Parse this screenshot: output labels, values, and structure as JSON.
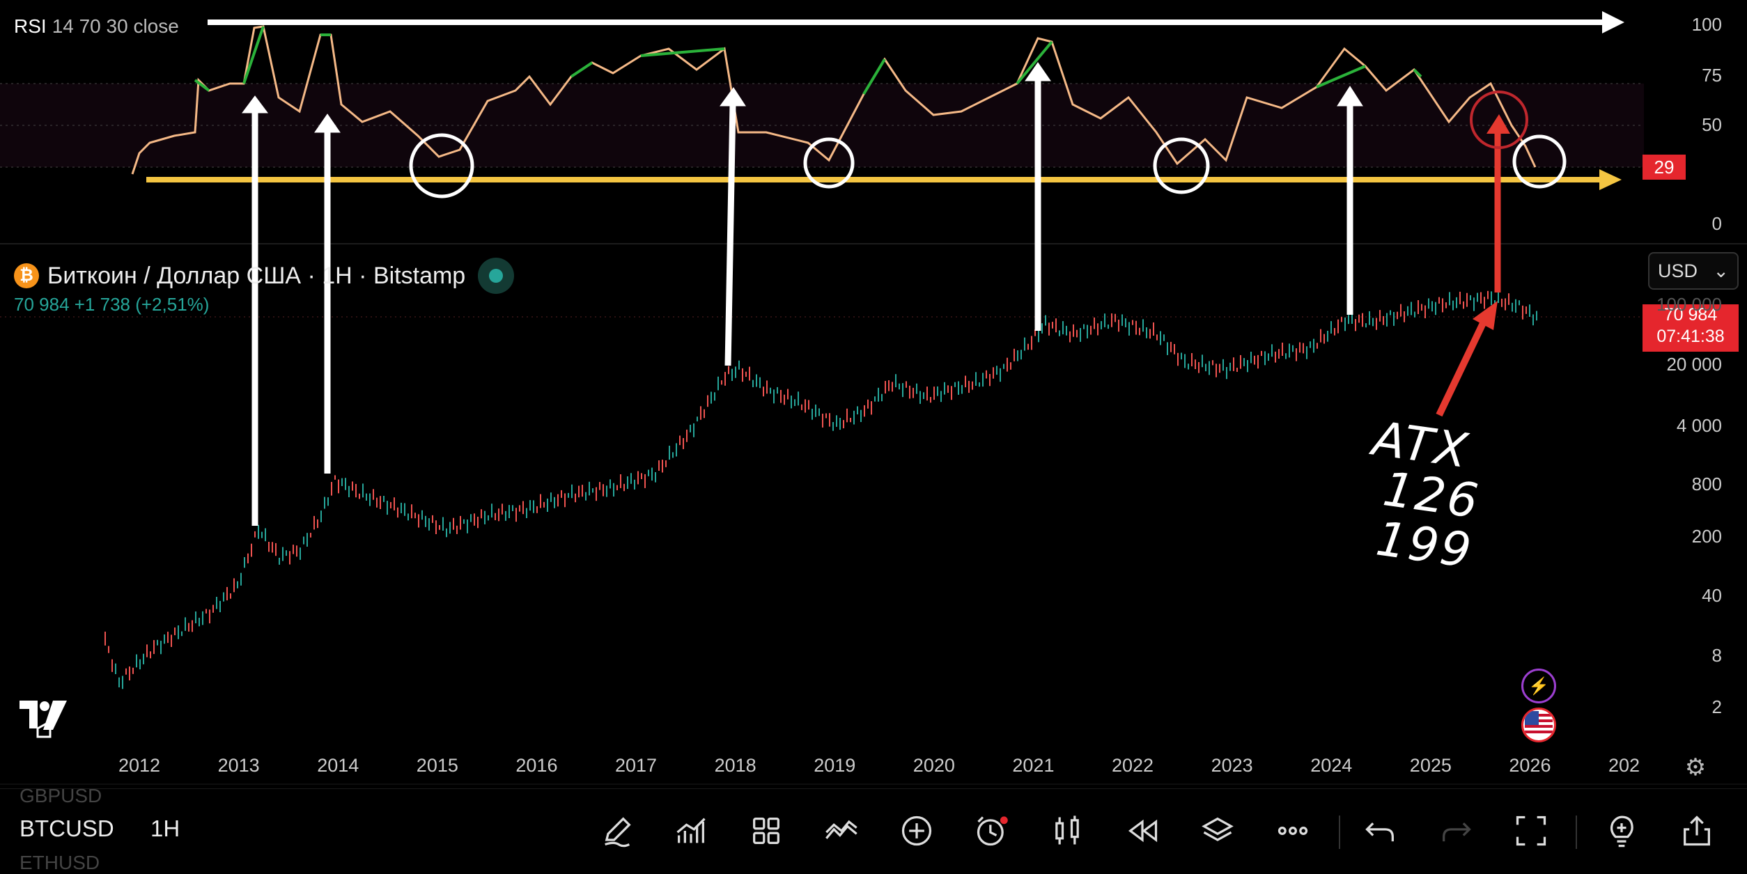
{
  "rsi_legend": {
    "name": "RSI",
    "params": "14 70 30 close"
  },
  "symbol_title": "Биткоин / Доллар США · 1H · Bitstamp",
  "symbol_icon": "bitcoin-icon",
  "price_change": "70 984  +1 738 (+2,51%)",
  "currency_select": "USD",
  "rsi_value_tag": "29",
  "price_tag": {
    "price": "70 984",
    "countdown": "07:41:38"
  },
  "rsi_axis": [
    "100",
    "75",
    "50",
    "29",
    "0"
  ],
  "price_axis_partial": "100 000",
  "price_axis": [
    "20 000",
    "4 000",
    "800",
    "200",
    "40",
    "8",
    "2"
  ],
  "x_axis": [
    "2012",
    "2013",
    "2014",
    "2015",
    "2016",
    "2017",
    "2018",
    "2019",
    "2020",
    "2021",
    "2022",
    "2023",
    "2024",
    "2025",
    "2026",
    "202"
  ],
  "annotation": {
    "line1": "ATX",
    "line2": "126 199"
  },
  "colors": {
    "rsi_line": "#f5b987",
    "rsi_overbought": "#2bb23a",
    "up": "#26a69a",
    "down": "#ef5350",
    "alert": "#e5262d",
    "yellow_arrow": "#f4c542"
  },
  "bottom_bar": {
    "symbols": {
      "above": "GBPUSD",
      "current": "BTCUSD",
      "below": "ETHUSD"
    },
    "timeframe": "1H",
    "tools": [
      "pencil-icon",
      "indicators-icon",
      "grid-icon",
      "trend-icon",
      "plus-circle-icon",
      "alert-clock-icon",
      "candles-icon",
      "replay-icon",
      "layers-icon",
      "more-icon",
      "undo-icon",
      "redo-icon",
      "fullscreen-icon",
      "lightbulb-icon",
      "share-icon"
    ]
  }
}
